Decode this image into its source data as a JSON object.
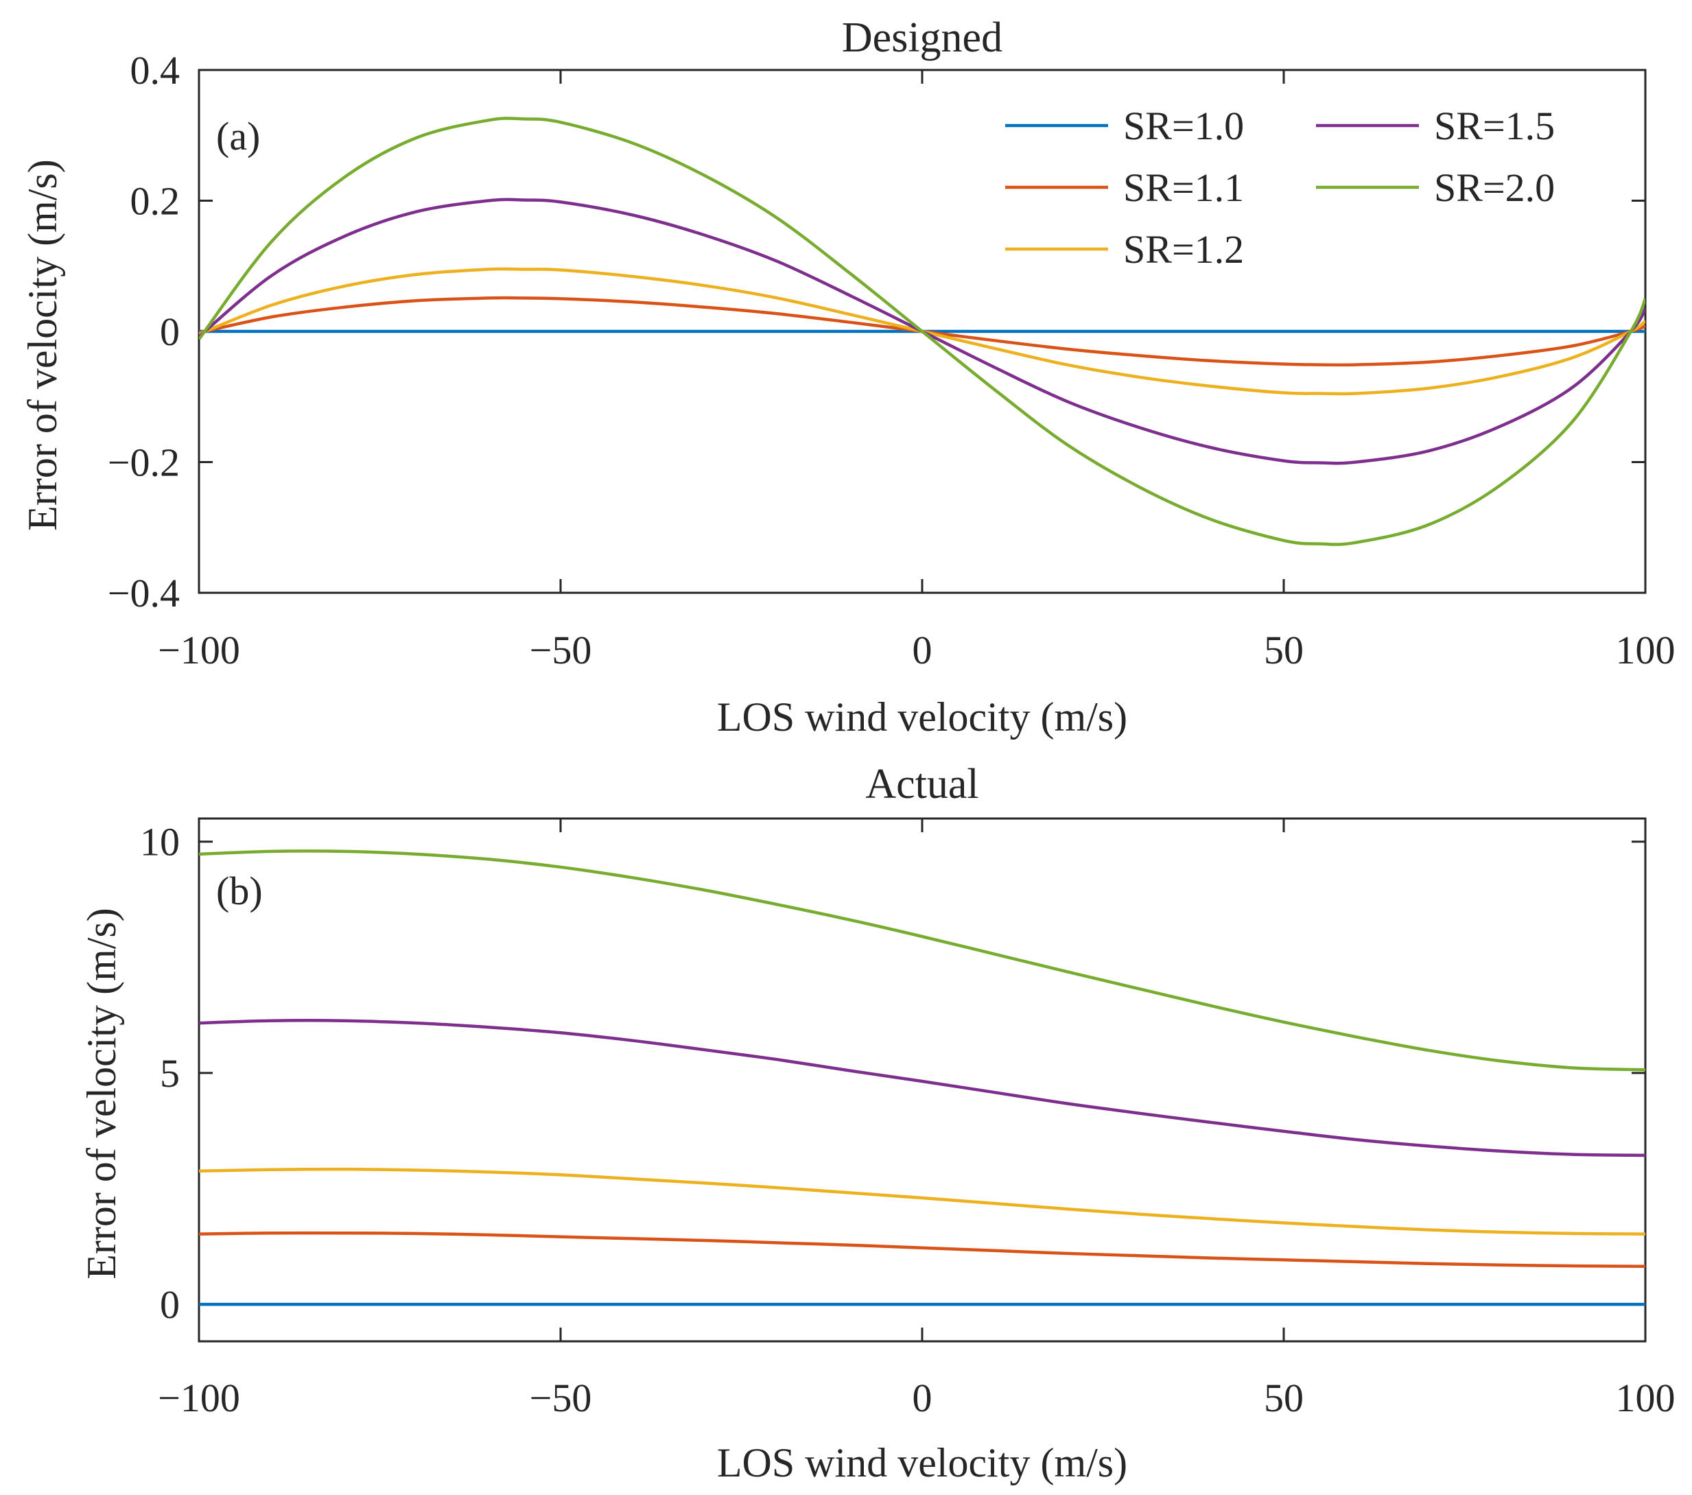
{
  "colors": {
    "SR=1.0": "#0072BD",
    "SR=1.1": "#D95319",
    "SR=1.2": "#EDB120",
    "SR=1.5": "#7E2F8E",
    "SR=2.0": "#77AC30"
  },
  "chart_data": [
    {
      "type": "line",
      "title": "Designed",
      "panel_label": "(a)",
      "xlabel": "LOS wind velocity (m/s)",
      "ylabel": "Error of velocity (m/s)",
      "xlim": [
        -100,
        100
      ],
      "ylim": [
        -0.4,
        0.4
      ],
      "xticks": [
        -100,
        -50,
        0,
        50,
        100
      ],
      "xtick_labels": [
        "−100",
        "−50",
        "0",
        "50",
        "100"
      ],
      "yticks": [
        0.4,
        0.2,
        0,
        -0.2,
        -0.4
      ],
      "ytick_labels": [
        "0.4",
        "0.2",
        "0",
        "−0.2",
        "−0.4"
      ],
      "legend": {
        "placement": "top-right",
        "columns": 2,
        "entries": [
          "SR=1.0",
          "SR=1.1",
          "SR=1.2",
          "SR=1.5",
          "SR=2.0"
        ]
      },
      "x": [
        -100,
        -90,
        -80,
        -70,
        -60,
        -55,
        -50,
        -40,
        -30,
        -20,
        -10,
        0,
        10,
        20,
        30,
        40,
        50,
        55,
        60,
        70,
        80,
        90,
        98,
        100
      ],
      "series": [
        {
          "name": "SR=1.0",
          "values": [
            0,
            0,
            0,
            0,
            0,
            0,
            0,
            0,
            0,
            0,
            0,
            0,
            0,
            0,
            0,
            0,
            0,
            0,
            0,
            0,
            0,
            0,
            0,
            0
          ]
        },
        {
          "name": "SR=1.1",
          "values": [
            -0.002,
            0.022,
            0.037,
            0.047,
            0.051,
            0.051,
            0.05,
            0.045,
            0.037,
            0.027,
            0.014,
            0.0,
            -0.014,
            -0.027,
            -0.037,
            -0.045,
            -0.05,
            -0.051,
            -0.051,
            -0.047,
            -0.037,
            -0.022,
            0.0,
            0.008
          ]
        },
        {
          "name": "SR=1.2",
          "values": [
            -0.004,
            0.04,
            0.069,
            0.087,
            0.095,
            0.095,
            0.094,
            0.084,
            0.07,
            0.051,
            0.026,
            0.0,
            -0.026,
            -0.051,
            -0.07,
            -0.084,
            -0.094,
            -0.095,
            -0.095,
            -0.087,
            -0.069,
            -0.04,
            0.0,
            0.016
          ]
        },
        {
          "name": "SR=1.5",
          "values": [
            -0.008,
            0.085,
            0.145,
            0.183,
            0.2,
            0.201,
            0.198,
            0.178,
            0.147,
            0.107,
            0.055,
            0.0,
            -0.055,
            -0.107,
            -0.147,
            -0.178,
            -0.198,
            -0.201,
            -0.2,
            -0.183,
            -0.145,
            -0.085,
            0.0,
            0.035
          ]
        },
        {
          "name": "SR=2.0",
          "values": [
            -0.012,
            0.137,
            0.235,
            0.296,
            0.323,
            0.325,
            0.32,
            0.288,
            0.238,
            0.173,
            0.089,
            0.0,
            -0.089,
            -0.173,
            -0.238,
            -0.288,
            -0.32,
            -0.325,
            -0.323,
            -0.296,
            -0.235,
            -0.137,
            0.0,
            0.05
          ]
        }
      ]
    },
    {
      "type": "line",
      "title": "Actual",
      "panel_label": "(b)",
      "xlabel": "LOS wind velocity (m/s)",
      "ylabel": "Error of velocity (m/s)",
      "xlim": [
        -100,
        100
      ],
      "ylim": [
        -0.8,
        10.5
      ],
      "xticks": [
        -100,
        -50,
        0,
        50,
        100
      ],
      "xtick_labels": [
        "−100",
        "−50",
        "0",
        "50",
        "100"
      ],
      "yticks": [
        10,
        5,
        0
      ],
      "ytick_labels": [
        "10",
        "5",
        "0"
      ],
      "x": [
        -100,
        -90,
        -80,
        -70,
        -60,
        -50,
        -40,
        -30,
        -20,
        -10,
        0,
        10,
        20,
        30,
        40,
        50,
        60,
        70,
        80,
        90,
        100
      ],
      "series": [
        {
          "name": "SR=1.0",
          "values": [
            0,
            0,
            0,
            0,
            0,
            0,
            0,
            0,
            0,
            0,
            0,
            0,
            0,
            0,
            0,
            0,
            0,
            0,
            0,
            0,
            0
          ]
        },
        {
          "name": "SR=1.1",
          "values": [
            1.52,
            1.54,
            1.54,
            1.53,
            1.5,
            1.46,
            1.42,
            1.38,
            1.33,
            1.28,
            1.22,
            1.16,
            1.1,
            1.05,
            1.0,
            0.96,
            0.92,
            0.88,
            0.85,
            0.83,
            0.82
          ]
        },
        {
          "name": "SR=1.2",
          "values": [
            2.88,
            2.91,
            2.92,
            2.9,
            2.86,
            2.8,
            2.71,
            2.62,
            2.52,
            2.41,
            2.3,
            2.18,
            2.06,
            1.95,
            1.85,
            1.76,
            1.68,
            1.61,
            1.56,
            1.53,
            1.52
          ]
        },
        {
          "name": "SR=1.5",
          "values": [
            6.08,
            6.13,
            6.13,
            6.08,
            5.99,
            5.87,
            5.7,
            5.5,
            5.29,
            5.05,
            4.82,
            4.58,
            4.34,
            4.13,
            3.93,
            3.74,
            3.56,
            3.42,
            3.31,
            3.24,
            3.22
          ]
        },
        {
          "name": "SR=2.0",
          "values": [
            9.73,
            9.79,
            9.79,
            9.73,
            9.62,
            9.45,
            9.22,
            8.95,
            8.64,
            8.31,
            7.95,
            7.57,
            7.19,
            6.82,
            6.45,
            6.1,
            5.78,
            5.49,
            5.26,
            5.11,
            5.07
          ]
        }
      ]
    }
  ]
}
